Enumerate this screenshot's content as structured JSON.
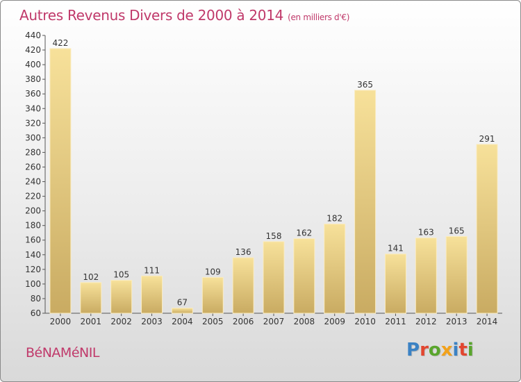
{
  "header": {
    "title": "Autres Revenus Divers de 2000 à 2014",
    "subtitle": "(en milliers d'€)"
  },
  "footer": {
    "place": "BéNAMéNIL",
    "logo": "Proxiti"
  },
  "colors": {
    "title": "#c0396a",
    "bar_light": "#f7e19a",
    "bar_dark": "#c9ab62",
    "logo_letters": [
      "#3b82c4",
      "#e2462f",
      "#59a52c",
      "#f2a21b",
      "#3b82c4",
      "#e2462f",
      "#59a52c"
    ]
  },
  "chart_data": {
    "type": "bar",
    "categories": [
      "2000",
      "2001",
      "2002",
      "2003",
      "2004",
      "2005",
      "2006",
      "2007",
      "2008",
      "2009",
      "2010",
      "2011",
      "2012",
      "2013",
      "2014"
    ],
    "values": [
      422,
      102,
      105,
      111,
      67,
      109,
      136,
      158,
      162,
      182,
      365,
      141,
      163,
      165,
      291
    ],
    "ylim": [
      60,
      440
    ],
    "yticks": [
      60,
      80,
      100,
      120,
      140,
      160,
      180,
      200,
      220,
      240,
      260,
      280,
      300,
      320,
      340,
      360,
      380,
      400,
      420,
      440
    ],
    "grid": false,
    "legend": "none"
  }
}
